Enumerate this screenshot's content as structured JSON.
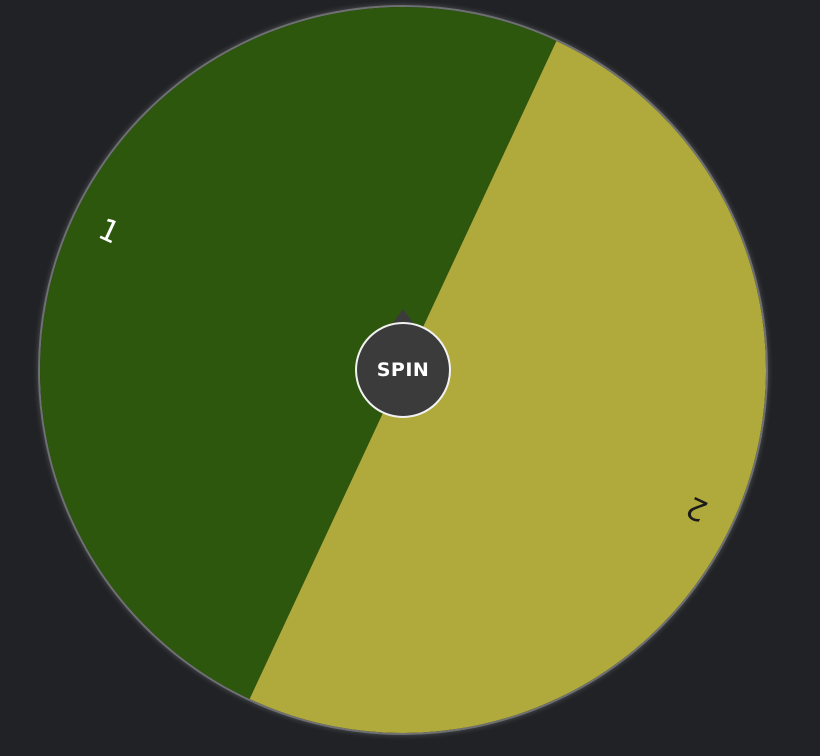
{
  "wheel": {
    "segments": [
      {
        "label": "1",
        "color": "#2d570d",
        "text_color": "#ffffff"
      },
      {
        "label": "2",
        "color": "#b0a93c",
        "text_color": "#1a1a1a"
      }
    ],
    "rotation_deg": 25
  },
  "spin_button": {
    "label": "SPIN",
    "color": "#3b3b3c"
  }
}
